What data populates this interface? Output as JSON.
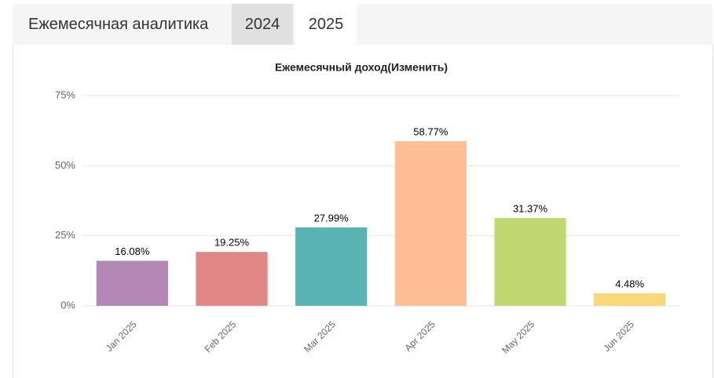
{
  "tabs": {
    "title": "Ежемесячная аналитика",
    "items": [
      "2024",
      "2025"
    ],
    "active": 1
  },
  "chart_data": {
    "type": "bar",
    "title": "Ежемесячный доход(Изменить)",
    "categories": [
      "Jan 2025",
      "Feb 2025",
      "Mar 2025",
      "Apr 2025",
      "May 2025",
      "Jun 2025"
    ],
    "values": [
      16.08,
      19.25,
      27.99,
      58.77,
      31.37,
      4.48
    ],
    "value_labels": [
      "16.08%",
      "19.25%",
      "27.99%",
      "58.77%",
      "31.37%",
      "4.48%"
    ],
    "colors": [
      "#b487b6",
      "#e38786",
      "#5ab4b4",
      "#ffbe93",
      "#bfd86f",
      "#f8d879"
    ],
    "ylim": [
      0,
      75
    ],
    "yticks": [
      {
        "value": 0,
        "label": "0%"
      },
      {
        "value": 25,
        "label": "25%"
      },
      {
        "value": 50,
        "label": "50%"
      },
      {
        "value": 75,
        "label": "75%"
      }
    ],
    "grid": true
  }
}
